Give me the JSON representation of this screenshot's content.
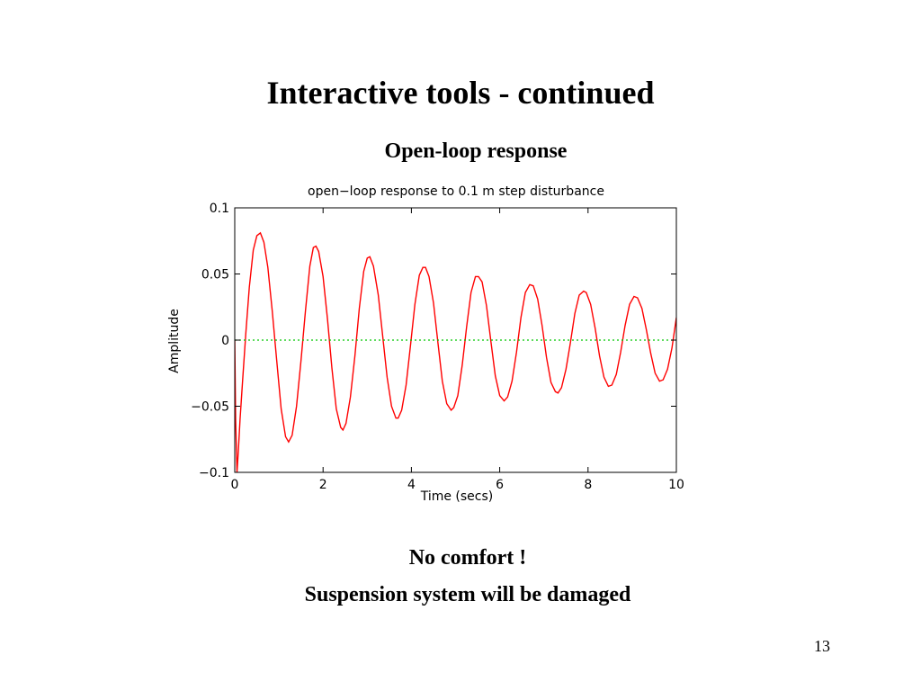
{
  "slide": {
    "title": "Interactive tools - continued",
    "subtitle": "Open-loop response",
    "footer_line1": "No comfort !",
    "footer_line2": "Suspension system will be damaged",
    "page_number": "13"
  },
  "chart_data": {
    "type": "line",
    "title": "open−loop response to 0.1 m step disturbance",
    "xlabel": "Time (secs)",
    "ylabel": "Amplitude",
    "xlim": [
      0,
      10
    ],
    "ylim": [
      -0.1,
      0.1
    ],
    "xticks": [
      0,
      2,
      4,
      6,
      8,
      10
    ],
    "xtick_labels": [
      "0",
      "2",
      "4",
      "6",
      "8",
      "10"
    ],
    "yticks": [
      -0.1,
      -0.05,
      0,
      0.05,
      0.1
    ],
    "ytick_labels": [
      "−0.1",
      "−0.05",
      "0",
      "0.05",
      "0.1"
    ],
    "grid": false,
    "series": [
      {
        "color": "#ff0000",
        "points": [
          [
            0.0,
            0.0
          ],
          [
            0.02,
            -0.06
          ],
          [
            0.05,
            -0.1
          ],
          [
            0.08,
            -0.085
          ],
          [
            0.12,
            -0.06
          ],
          [
            0.18,
            -0.03
          ],
          [
            0.25,
            0.005
          ],
          [
            0.33,
            0.04
          ],
          [
            0.42,
            0.068
          ],
          [
            0.5,
            0.079
          ],
          [
            0.58,
            0.081
          ],
          [
            0.66,
            0.074
          ],
          [
            0.75,
            0.055
          ],
          [
            0.85,
            0.022
          ],
          [
            0.95,
            -0.015
          ],
          [
            1.05,
            -0.052
          ],
          [
            1.15,
            -0.073
          ],
          [
            1.22,
            -0.077
          ],
          [
            1.3,
            -0.072
          ],
          [
            1.4,
            -0.05
          ],
          [
            1.5,
            -0.016
          ],
          [
            1.6,
            0.022
          ],
          [
            1.7,
            0.056
          ],
          [
            1.78,
            0.07
          ],
          [
            1.84,
            0.071
          ],
          [
            1.9,
            0.067
          ],
          [
            2.0,
            0.048
          ],
          [
            2.1,
            0.016
          ],
          [
            2.2,
            -0.021
          ],
          [
            2.3,
            -0.052
          ],
          [
            2.4,
            -0.066
          ],
          [
            2.45,
            -0.068
          ],
          [
            2.52,
            -0.063
          ],
          [
            2.62,
            -0.043
          ],
          [
            2.72,
            -0.012
          ],
          [
            2.82,
            0.024
          ],
          [
            2.92,
            0.052
          ],
          [
            3.0,
            0.062
          ],
          [
            3.06,
            0.063
          ],
          [
            3.14,
            0.056
          ],
          [
            3.25,
            0.034
          ],
          [
            3.35,
            0.003
          ],
          [
            3.45,
            -0.028
          ],
          [
            3.55,
            -0.05
          ],
          [
            3.65,
            -0.059
          ],
          [
            3.7,
            -0.059
          ],
          [
            3.78,
            -0.053
          ],
          [
            3.88,
            -0.034
          ],
          [
            3.98,
            -0.004
          ],
          [
            4.08,
            0.027
          ],
          [
            4.18,
            0.049
          ],
          [
            4.26,
            0.055
          ],
          [
            4.32,
            0.055
          ],
          [
            4.4,
            0.048
          ],
          [
            4.5,
            0.028
          ],
          [
            4.6,
            -0.002
          ],
          [
            4.7,
            -0.031
          ],
          [
            4.8,
            -0.048
          ],
          [
            4.9,
            -0.053
          ],
          [
            4.96,
            -0.051
          ],
          [
            5.05,
            -0.042
          ],
          [
            5.15,
            -0.019
          ],
          [
            5.25,
            0.01
          ],
          [
            5.35,
            0.036
          ],
          [
            5.45,
            0.048
          ],
          [
            5.52,
            0.048
          ],
          [
            5.6,
            0.044
          ],
          [
            5.7,
            0.026
          ],
          [
            5.8,
            -0.001
          ],
          [
            5.9,
            -0.027
          ],
          [
            6.0,
            -0.042
          ],
          [
            6.1,
            -0.046
          ],
          [
            6.18,
            -0.043
          ],
          [
            6.28,
            -0.031
          ],
          [
            6.38,
            -0.009
          ],
          [
            6.48,
            0.017
          ],
          [
            6.58,
            0.036
          ],
          [
            6.68,
            0.042
          ],
          [
            6.76,
            0.041
          ],
          [
            6.86,
            0.031
          ],
          [
            6.96,
            0.011
          ],
          [
            7.06,
            -0.013
          ],
          [
            7.16,
            -0.032
          ],
          [
            7.26,
            -0.039
          ],
          [
            7.32,
            -0.04
          ],
          [
            7.4,
            -0.036
          ],
          [
            7.5,
            -0.022
          ],
          [
            7.6,
            -0.002
          ],
          [
            7.7,
            0.02
          ],
          [
            7.8,
            0.034
          ],
          [
            7.9,
            0.037
          ],
          [
            7.96,
            0.036
          ],
          [
            8.06,
            0.027
          ],
          [
            8.16,
            0.009
          ],
          [
            8.26,
            -0.012
          ],
          [
            8.36,
            -0.028
          ],
          [
            8.46,
            -0.035
          ],
          [
            8.54,
            -0.034
          ],
          [
            8.64,
            -0.026
          ],
          [
            8.74,
            -0.009
          ],
          [
            8.84,
            0.011
          ],
          [
            8.94,
            0.027
          ],
          [
            9.04,
            0.033
          ],
          [
            9.12,
            0.032
          ],
          [
            9.22,
            0.024
          ],
          [
            9.32,
            0.008
          ],
          [
            9.42,
            -0.01
          ],
          [
            9.52,
            -0.025
          ],
          [
            9.62,
            -0.031
          ],
          [
            9.7,
            -0.03
          ],
          [
            9.8,
            -0.022
          ],
          [
            9.9,
            -0.006
          ],
          [
            10.0,
            0.017
          ]
        ]
      },
      {
        "color": "#00c800",
        "style": "dotted",
        "points": [
          [
            0,
            0
          ],
          [
            10,
            0
          ]
        ]
      }
    ],
    "colors": {
      "axes": "#000000"
    }
  }
}
